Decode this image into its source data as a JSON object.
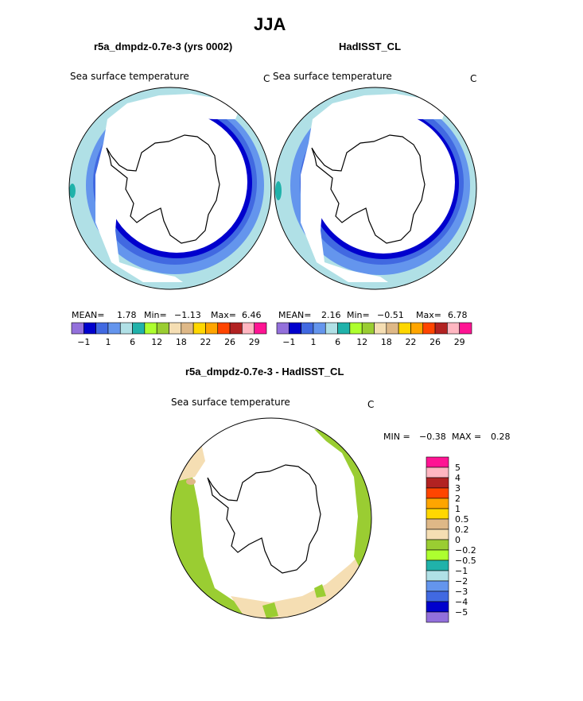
{
  "page": {
    "title": "JJA",
    "left_panel_title": "r5a_dmpdz-0.7e-3 (yrs 0002)",
    "right_panel_title": "HadISST_CL",
    "diff_panel_title": "r5a_dmpdz-0.7e-3 - HadISST_CL"
  },
  "panels": {
    "left": {
      "variable": "Sea surface temperature",
      "units": "C",
      "mean_label": "MEAN=",
      "mean": "1.78",
      "min_label": "Min=",
      "min": "−1.13",
      "max_label": "Max=",
      "max": "6.46"
    },
    "right": {
      "variable": "Sea surface temperature",
      "units": "C",
      "mean_label": "MEAN=",
      "mean": "2.16",
      "min_label": "Min=",
      "min": "−0.51",
      "max_label": "Max=",
      "max": "6.78"
    },
    "diff": {
      "variable": "Sea surface temperature",
      "units": "C",
      "min_label": "MIN =",
      "min": "−0.38",
      "max_label": "MAX =",
      "max": "0.28"
    }
  },
  "colorbar_abs": {
    "colors": [
      "#9370db",
      "#0000cd",
      "#4169e1",
      "#6495ed",
      "#b0e0e6",
      "#20b2aa",
      "#adff2f",
      "#9acd32",
      "#f5deb3",
      "#deb887",
      "#ffd700",
      "#ffa500",
      "#ff4500",
      "#b22222",
      "#ffb6c1",
      "#ff1493"
    ],
    "tick_labels": [
      "−1",
      "1",
      "6",
      "12",
      "18",
      "22",
      "26",
      "29"
    ]
  },
  "colorbar_diff": {
    "colors": [
      "#ff1493",
      "#ffb6c1",
      "#b22222",
      "#ff4500",
      "#ffa500",
      "#ffd700",
      "#deb887",
      "#f5deb3",
      "#9acd32",
      "#adff2f",
      "#20b2aa",
      "#b0e0e6",
      "#6495ed",
      "#4169e1",
      "#0000cd",
      "#9370db"
    ],
    "tick_labels": [
      "5",
      "4",
      "3",
      "2",
      "1",
      "0.5",
      "0.2",
      "0",
      "−0.2",
      "−0.5",
      "−1",
      "−2",
      "−3",
      "−4",
      "−5"
    ]
  },
  "map_colors": {
    "lightblue": "#b0e0e6",
    "cornflower": "#6495ed",
    "royalblue": "#4169e1",
    "medium_blue": "#0000cd",
    "teal": "#20b2aa",
    "olive_green": "#9acd32",
    "wheat": "#f5deb3",
    "tan": "#deb887"
  }
}
